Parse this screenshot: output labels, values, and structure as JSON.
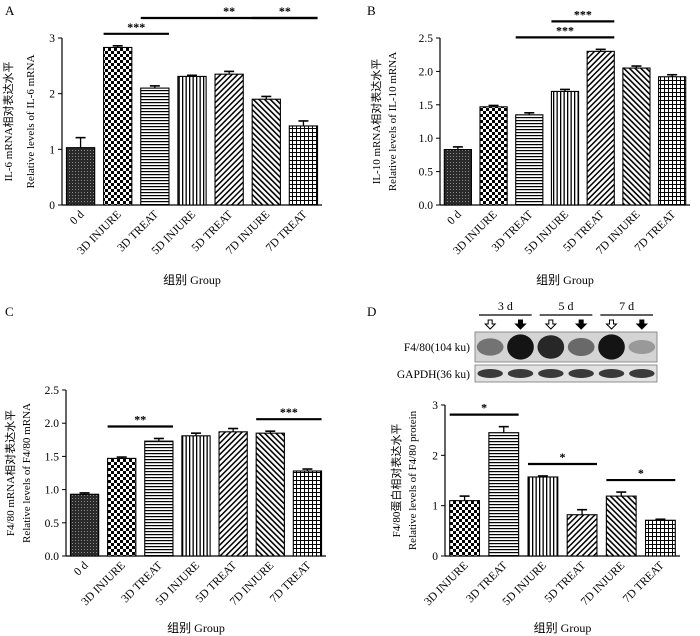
{
  "chart_data": [
    {
      "type": "bar",
      "panel": "A",
      "categories": [
        "0 d",
        "3D INJURE",
        "3D TREAT",
        "5D INJURE",
        "5D TREAT",
        "7D INJURE",
        "7D TREAT"
      ],
      "values": [
        1.03,
        2.83,
        2.1,
        2.31,
        2.35,
        1.9,
        1.42
      ],
      "errors": [
        0.18,
        0.03,
        0.04,
        0.02,
        0.05,
        0.05,
        0.09
      ],
      "patterns": [
        "dense",
        "checker",
        "hstripe",
        "vstripe",
        "diag",
        "diag2",
        "grid"
      ],
      "ylabel": [
        "IL-6 mRNA相对表达水平",
        "Relative levels of IL-6 mRNA"
      ],
      "xlabel": "组别 Group",
      "ylim": [
        0,
        3
      ],
      "yticks": [
        0,
        1,
        2,
        3
      ],
      "significance": [
        {
          "from": 1,
          "to": 2,
          "label": "***"
        },
        {
          "from": 2,
          "to": 6,
          "label": "**"
        },
        {
          "from": 5,
          "to": 6,
          "label": "**"
        }
      ]
    },
    {
      "type": "bar",
      "panel": "B",
      "categories": [
        "0 d",
        "3D INJURE",
        "3D TREAT",
        "5D INJURE",
        "5D TREAT",
        "7D INJURE",
        "7D TREAT"
      ],
      "values": [
        0.83,
        1.47,
        1.35,
        1.7,
        2.3,
        2.05,
        1.92
      ],
      "errors": [
        0.04,
        0.02,
        0.03,
        0.03,
        0.03,
        0.03,
        0.03
      ],
      "patterns": [
        "dense",
        "checker",
        "hstripe",
        "vstripe",
        "diag",
        "diag2",
        "grid"
      ],
      "ylabel": [
        "IL-10 mRNA相对表达水平",
        "Relative levels of IL-10 mRNA"
      ],
      "xlabel": "组别 Group",
      "ylim": [
        0,
        2.5
      ],
      "yticks": [
        0,
        0.5,
        1.0,
        1.5,
        2.0,
        2.5
      ],
      "significance": [
        {
          "from": 2,
          "to": 4,
          "label": "***"
        },
        {
          "from": 3,
          "to": 4,
          "label": "***"
        }
      ]
    },
    {
      "type": "bar",
      "panel": "C",
      "categories": [
        "0 d",
        "3D INJURE",
        "3D TREAT",
        "5D INJURE",
        "5D TREAT",
        "7D INJURE",
        "7D TREAT"
      ],
      "values": [
        0.93,
        1.47,
        1.73,
        1.81,
        1.87,
        1.85,
        1.28
      ],
      "errors": [
        0.02,
        0.02,
        0.04,
        0.04,
        0.05,
        0.03,
        0.03
      ],
      "patterns": [
        "dense",
        "checker",
        "hstripe",
        "vstripe",
        "diag",
        "diag2",
        "grid"
      ],
      "ylabel": [
        "F4/80 mRNA相对表达水平",
        "Relative levels of F4/80 mRNA"
      ],
      "xlabel": "组别 Group",
      "ylim": [
        0,
        2.5
      ],
      "yticks": [
        0,
        0.5,
        1.0,
        1.5,
        2.0,
        2.5
      ],
      "significance": [
        {
          "from": 1,
          "to": 2,
          "label": "**"
        },
        {
          "from": 5,
          "to": 6,
          "label": "***"
        }
      ]
    },
    {
      "type": "bar",
      "panel": "D",
      "categories": [
        "3D INJURE",
        "3D TREAT",
        "5D INJURE",
        "5D TREAT",
        "7D INJURE",
        "7D TREAT"
      ],
      "values": [
        1.1,
        2.45,
        1.57,
        0.82,
        1.19,
        0.71
      ],
      "errors": [
        0.09,
        0.12,
        0.02,
        0.1,
        0.08,
        0.02
      ],
      "patterns": [
        "checker",
        "hstripe",
        "vstripe",
        "diag",
        "diag2",
        "grid"
      ],
      "ylabel": [
        "F4/80蛋白相对表达水平",
        "Relative levels of F4/80 protein"
      ],
      "xlabel": "组别 Group",
      "ylim": [
        0,
        3
      ],
      "yticks": [
        0,
        1,
        2,
        3
      ],
      "significance": [
        {
          "from": 0,
          "to": 1,
          "label": "*"
        },
        {
          "from": 2,
          "to": 3,
          "label": "*"
        },
        {
          "from": 4,
          "to": 5,
          "label": "*"
        }
      ],
      "blot": {
        "time_labels": [
          "3 d",
          "5 d",
          "7 d"
        ],
        "rows": [
          "F4/80(104 ku)",
          "GAPDH(36 ku)"
        ],
        "lane_markers": [
          "open-down-arrow",
          "solid-down-arrow",
          "open-down-arrow",
          "solid-down-arrow",
          "open-down-arrow",
          "solid-down-arrow"
        ],
        "f4_intensity": [
          0.45,
          0.95,
          0.85,
          0.5,
          0.95,
          0.25
        ]
      }
    }
  ]
}
